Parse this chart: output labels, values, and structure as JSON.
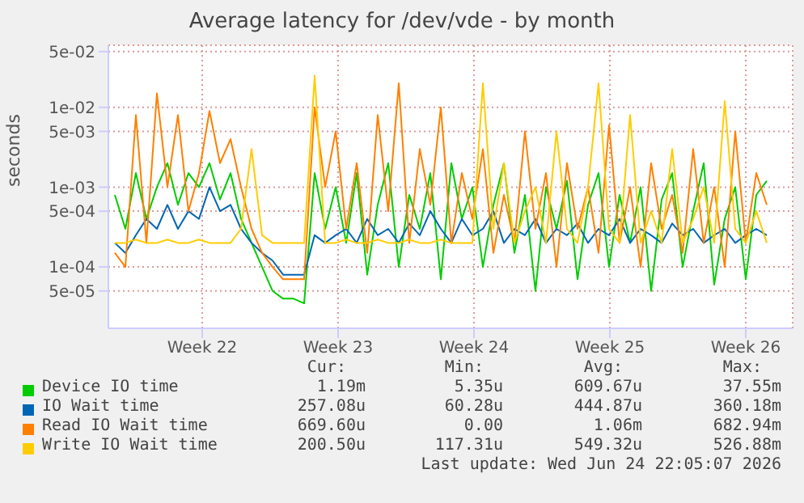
{
  "chart_data": {
    "type": "line",
    "title": "Average latency for /dev/vde - by month",
    "ylabel": "seconds",
    "x": [
      "2026-05-21T00:00",
      "2026-05-21T13:00",
      "2026-05-22T02:00",
      "2026-05-22T15:00",
      "2026-05-23T04:00",
      "2026-05-23T17:00",
      "2026-05-24T06:00",
      "2026-05-24T19:00",
      "2026-05-25T08:00",
      "2026-05-25T21:00",
      "2026-05-26T10:00",
      "2026-05-26T23:00",
      "2026-05-27T12:00",
      "2026-05-28T01:00",
      "2026-05-28T14:00",
      "2026-05-29T03:00",
      "2026-05-29T16:00",
      "2026-05-30T05:00",
      "2026-05-30T18:00",
      "2026-05-31T07:00",
      "2026-05-31T20:00",
      "2026-06-01T09:00",
      "2026-06-01T22:00",
      "2026-06-02T11:00",
      "2026-06-03T00:00",
      "2026-06-03T13:00",
      "2026-06-04T02:00",
      "2026-06-04T15:00",
      "2026-06-05T04:00",
      "2026-06-05T17:00",
      "2026-06-06T06:00",
      "2026-06-06T19:00",
      "2026-06-07T08:00",
      "2026-06-07T21:00",
      "2026-06-08T10:00",
      "2026-06-08T23:00",
      "2026-06-09T12:00",
      "2026-06-10T01:00",
      "2026-06-10T14:00",
      "2026-06-11T03:00",
      "2026-06-11T16:00",
      "2026-06-12T05:00",
      "2026-06-12T18:00",
      "2026-06-13T07:00",
      "2026-06-13T20:00",
      "2026-06-14T09:00",
      "2026-06-14T22:00",
      "2026-06-15T11:00",
      "2026-06-16T00:00",
      "2026-06-16T13:00",
      "2026-06-17T02:00",
      "2026-06-17T15:00",
      "2026-06-18T04:00",
      "2026-06-18T17:00",
      "2026-06-19T06:00",
      "2026-06-19T19:00",
      "2026-06-20T08:00",
      "2026-06-20T21:00",
      "2026-06-21T10:00",
      "2026-06-21T23:00",
      "2026-06-22T12:00",
      "2026-06-23T01:00",
      "2026-06-23T14:00"
    ],
    "series": [
      {
        "name": "Device IO time",
        "color": "#00cc00",
        "values": [
          0.0008,
          0.0003,
          0.0015,
          0.0004,
          0.001,
          0.002,
          0.0006,
          0.0015,
          0.001,
          0.002,
          0.0007,
          0.0015,
          0.0004,
          0.0002,
          0.0001,
          5e-05,
          4e-05,
          4e-05,
          3.5e-05,
          0.0015,
          0.0003,
          0.001,
          0.0002,
          0.0015,
          8e-05,
          0.0006,
          0.002,
          0.0001,
          0.0008,
          0.0003,
          0.0015,
          7e-05,
          0.002,
          0.0004,
          0.001,
          0.0001,
          0.0006,
          0.002,
          0.00015,
          0.0008,
          5e-05,
          0.001,
          0.0003,
          0.0012,
          7e-05,
          0.0006,
          0.0015,
          0.0001,
          0.0008,
          0.0002,
          0.001,
          5e-05,
          0.0007,
          0.0015,
          0.0001,
          0.0005,
          0.002,
          6e-05,
          0.0004,
          0.001,
          7e-05,
          0.0008,
          0.0012
        ]
      },
      {
        "name": "IO Wait time",
        "color": "#0066b3",
        "values": [
          0.0002,
          0.00015,
          0.00025,
          0.0004,
          0.0003,
          0.0006,
          0.0003,
          0.0005,
          0.0004,
          0.001,
          0.0005,
          0.0006,
          0.0003,
          0.0002,
          0.00015,
          0.00012,
          8e-05,
          8e-05,
          8e-05,
          0.00025,
          0.0002,
          0.00025,
          0.0003,
          0.0002,
          0.0004,
          0.00025,
          0.0003,
          0.0002,
          0.00035,
          0.00025,
          0.0005,
          0.0003,
          0.0002,
          0.0004,
          0.00025,
          0.0003,
          0.0005,
          0.0002,
          0.0003,
          0.00025,
          0.0004,
          0.0002,
          0.0003,
          0.00025,
          0.00035,
          0.0002,
          0.0003,
          0.00025,
          0.0004,
          0.0002,
          0.0003,
          0.00025,
          0.0002,
          0.00035,
          0.00025,
          0.0003,
          0.0002,
          0.00025,
          0.0003,
          0.0002,
          0.00025,
          0.0003,
          0.00025
        ]
      },
      {
        "name": "Read IO Wait time",
        "color": "#ff8000",
        "values": [
          0.00015,
          0.0001,
          0.008,
          0.0002,
          0.015,
          0.001,
          0.008,
          0.0005,
          0.0015,
          0.009,
          0.002,
          0.004,
          0.001,
          0.0003,
          0.00015,
          0.0001,
          7e-05,
          7e-05,
          7e-05,
          0.01,
          0.001,
          0.005,
          0.0003,
          0.002,
          0.00015,
          0.008,
          0.0005,
          0.02,
          0.0002,
          0.003,
          0.0006,
          0.01,
          0.0002,
          0.0015,
          0.0004,
          0.003,
          0.00015,
          0.0008,
          0.0002,
          0.005,
          0.0003,
          0.0015,
          0.0001,
          0.002,
          0.0003,
          0.001,
          0.00015,
          0.006,
          0.0002,
          0.001,
          0.0001,
          0.002,
          0.0003,
          0.0008,
          0.00015,
          0.003,
          0.0002,
          0.001,
          0.0001,
          0.005,
          0.0002,
          0.0015,
          0.0006
        ]
      },
      {
        "name": "Write IO Wait time",
        "color": "#ffcc00",
        "values": [
          0.0002,
          0.0002,
          0.00022,
          0.0002,
          0.0002,
          0.00022,
          0.0002,
          0.0002,
          0.00022,
          0.0002,
          0.0002,
          0.0002,
          0.0003,
          0.003,
          0.00025,
          0.0002,
          0.0002,
          0.0002,
          0.0002,
          0.025,
          0.0002,
          0.0002,
          0.00022,
          0.0002,
          0.0002,
          0.00022,
          0.0002,
          0.0002,
          0.00022,
          0.0002,
          0.0002,
          0.00022,
          0.0002,
          0.0002,
          0.0002,
          0.02,
          0.0003,
          0.002,
          0.0002,
          0.0005,
          0.001,
          0.0002,
          0.005,
          0.0003,
          0.0002,
          0.001,
          0.02,
          0.0003,
          0.0002,
          0.008,
          0.0002,
          0.0005,
          0.0002,
          0.003,
          0.0002,
          0.0004,
          0.001,
          0.0002,
          0.012,
          0.0003,
          0.0002,
          0.0005,
          0.0002
        ]
      }
    ],
    "log": true,
    "ylim": [
      1.7e-05,
      0.06
    ],
    "yticks": [
      {
        "value": 5e-05,
        "label": "5e-05"
      },
      {
        "value": 0.0001,
        "label": "1e-04"
      },
      {
        "value": 0.0005,
        "label": "5e-04"
      },
      {
        "value": 0.001,
        "label": "1e-03"
      },
      {
        "value": 0.005,
        "label": "5e-03"
      },
      {
        "value": 0.01,
        "label": "1e-02"
      },
      {
        "value": 0.05,
        "label": "5e-02"
      }
    ],
    "xlim": [
      "2026-05-20T16:00",
      "2026-06-24T22:00"
    ],
    "xticks": [
      {
        "value": "2026-05-25T12:00",
        "label": "Week 22"
      },
      {
        "value": "2026-06-01T12:00",
        "label": "Week 23"
      },
      {
        "value": "2026-06-08T12:00",
        "label": "Week 24"
      },
      {
        "value": "2026-06-15T12:00",
        "label": "Week 25"
      },
      {
        "value": "2026-06-22T12:00",
        "label": "Week 26"
      }
    ],
    "grid": true,
    "legend": "bottom",
    "marker": "none",
    "line_style": "solid",
    "annotations": [
      "Cur:",
      "Min:",
      "Avg:",
      "Max:",
      "1.19m",
      "5.35u",
      "609.67u",
      "37.55m",
      "257.08u",
      "60.28u",
      "444.87u",
      "360.18m",
      "669.60u",
      "0.00",
      "1.06m",
      "682.94m",
      "200.50u",
      "117.31u",
      "549.32u",
      "526.88m",
      "Last update: Wed Jun 24 22:05:07 2026"
    ]
  }
}
